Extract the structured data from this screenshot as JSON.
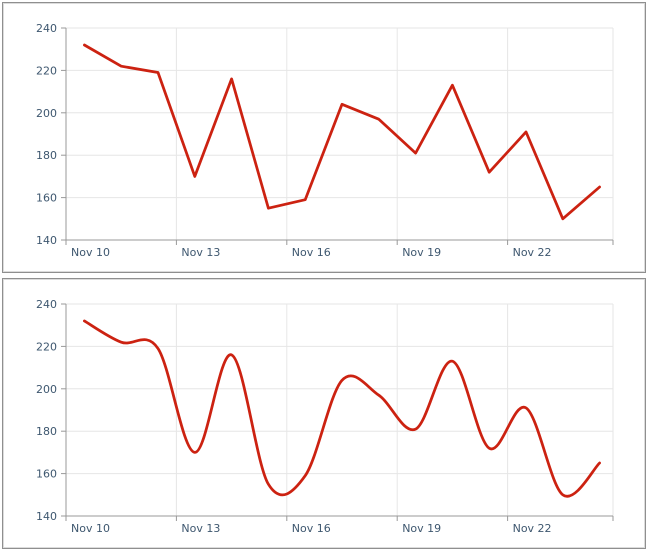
{
  "page": {
    "title": "",
    "panels": [
      {
        "name": "straight-line-chart-panel"
      },
      {
        "name": "smooth-line-chart-panel"
      }
    ]
  },
  "colors": {
    "series_line": "#cc2211",
    "gridline": "#e6e6e6",
    "axis_line": "#999999",
    "tick_mark": "#999999",
    "axis_label_text": "#3e576f",
    "panel_border": "#8f8f8f",
    "background": "#ffffff"
  },
  "chart_data": [
    {
      "type": "line",
      "line_style": "straight",
      "title": "",
      "xlabel": "",
      "ylabel": "",
      "x": [
        "Nov 10",
        "Nov 11",
        "Nov 12",
        "Nov 13",
        "Nov 14",
        "Nov 15",
        "Nov 16",
        "Nov 17",
        "Nov 18",
        "Nov 19",
        "Nov 20",
        "Nov 21",
        "Nov 22",
        "Nov 23",
        "Nov 24"
      ],
      "values": [
        232,
        222,
        219,
        170,
        216,
        155,
        159,
        204,
        197,
        181,
        213,
        172,
        191,
        150,
        165
      ],
      "xtick_labels": [
        "Nov 10",
        "Nov 13",
        "Nov 16",
        "Nov 19",
        "Nov 22"
      ],
      "xtick_day_positions": [
        0,
        3,
        6,
        9,
        12
      ],
      "ytick_labels": [
        "140",
        "160",
        "180",
        "200",
        "220",
        "240"
      ],
      "yticks": [
        140,
        160,
        180,
        200,
        220,
        240
      ],
      "ylim": [
        140,
        240
      ],
      "grid": true,
      "legend": "none",
      "line_color": "#cc2211"
    },
    {
      "type": "line",
      "line_style": "smooth",
      "title": "",
      "xlabel": "",
      "ylabel": "",
      "x": [
        "Nov 10",
        "Nov 11",
        "Nov 12",
        "Nov 13",
        "Nov 14",
        "Nov 15",
        "Nov 16",
        "Nov 17",
        "Nov 18",
        "Nov 19",
        "Nov 20",
        "Nov 21",
        "Nov 22",
        "Nov 23",
        "Nov 24"
      ],
      "values": [
        232,
        222,
        219,
        170,
        216,
        155,
        159,
        204,
        197,
        181,
        213,
        172,
        191,
        150,
        165
      ],
      "xtick_labels": [
        "Nov 10",
        "Nov 13",
        "Nov 16",
        "Nov 19",
        "Nov 22"
      ],
      "xtick_day_positions": [
        0,
        3,
        6,
        9,
        12
      ],
      "ytick_labels": [
        "140",
        "160",
        "180",
        "200",
        "220",
        "240"
      ],
      "yticks": [
        140,
        160,
        180,
        200,
        220,
        240
      ],
      "ylim": [
        140,
        240
      ],
      "grid": true,
      "legend": "none",
      "line_color": "#cc2211"
    }
  ]
}
